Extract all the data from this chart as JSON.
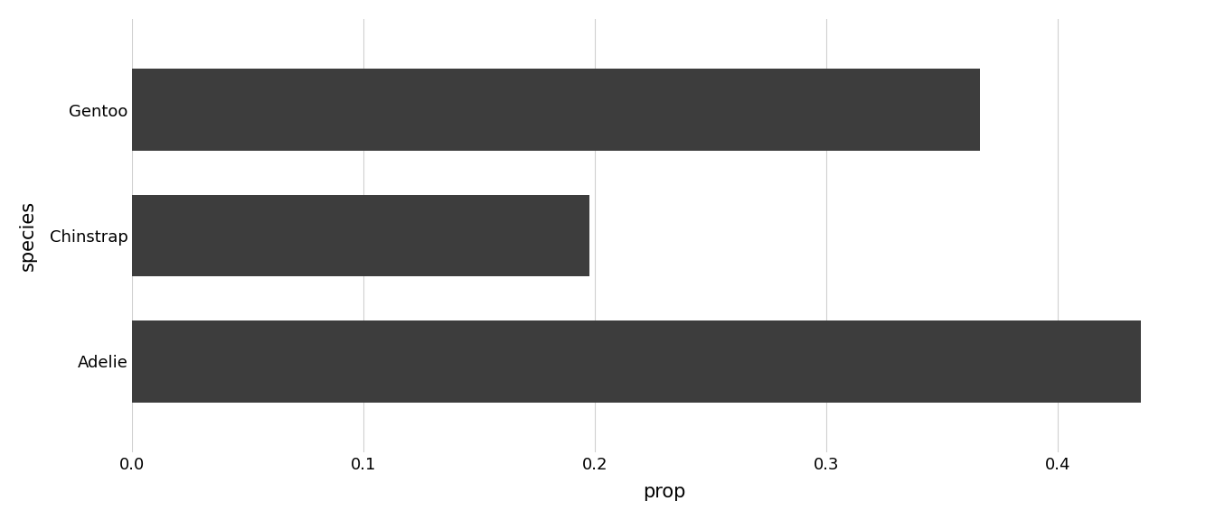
{
  "categories": [
    "Adelie",
    "Chinstrap",
    "Gentoo"
  ],
  "values": [
    0.4360359,
    0.1976048,
    0.3663594
  ],
  "bar_color": "#3d3d3d",
  "xlabel": "prop",
  "ylabel": "species",
  "xlim": [
    0,
    0.46
  ],
  "xticks": [
    0.0,
    0.1,
    0.2,
    0.3,
    0.4
  ],
  "background_color": "#ffffff",
  "grid_color": "#d0d0d0",
  "label_fontsize": 15,
  "tick_fontsize": 13,
  "bar_height": 0.65
}
